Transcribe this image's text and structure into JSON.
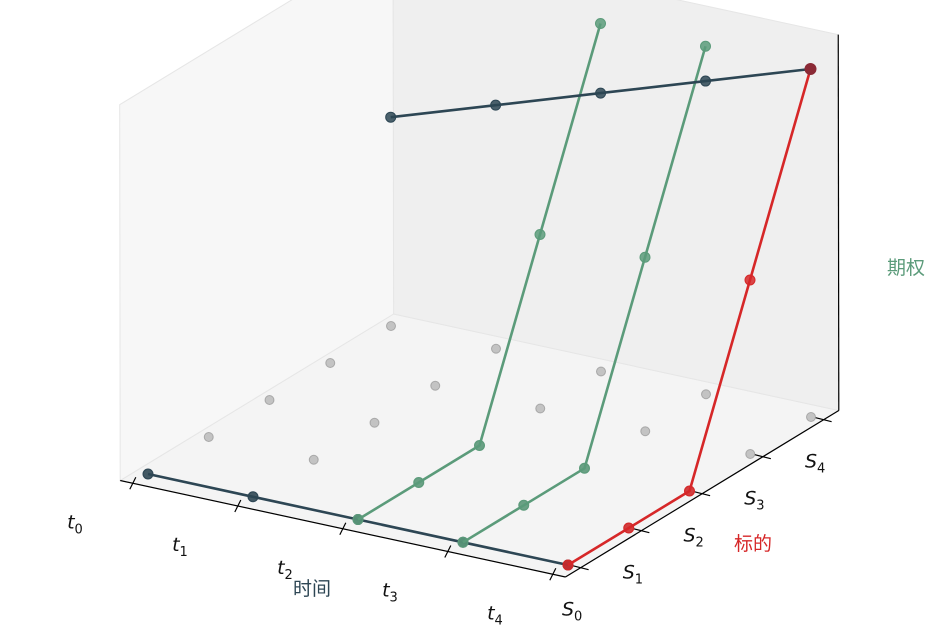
{
  "chart_data": {
    "type": "line3d",
    "title": "",
    "axes": {
      "time": {
        "title": "时间",
        "title_color": "#2d4654",
        "ticks": [
          {
            "base": "t",
            "sub": "0"
          },
          {
            "base": "t",
            "sub": "1"
          },
          {
            "base": "t",
            "sub": "2"
          },
          {
            "base": "t",
            "sub": "3"
          },
          {
            "base": "t",
            "sub": "4"
          }
        ]
      },
      "underlying": {
        "title": "标的",
        "title_color": "#d62728",
        "ticks": [
          {
            "base": "S",
            "sub": "0"
          },
          {
            "base": "S",
            "sub": "1"
          },
          {
            "base": "S",
            "sub": "2"
          },
          {
            "base": "S",
            "sub": "3"
          },
          {
            "base": "S",
            "sub": "4"
          }
        ]
      },
      "option": {
        "title": "期权",
        "title_color": "#5b9b7a",
        "range": [
          0,
          1
        ]
      }
    },
    "grid_points": {
      "color": "#888888",
      "t": [
        0,
        1,
        2,
        3,
        4
      ],
      "s": [
        0,
        1,
        2,
        3,
        4
      ],
      "z": 0
    },
    "series": [
      {
        "role": "time-baseline",
        "color": "#2d4654",
        "points": [
          [
            0,
            0,
            0
          ],
          [
            1,
            0,
            0
          ],
          [
            2,
            0,
            0
          ],
          [
            3,
            0,
            0
          ],
          [
            4,
            0,
            0
          ]
        ]
      },
      {
        "role": "underlying-path",
        "color": "#d62728",
        "points": [
          [
            4,
            0,
            0
          ],
          [
            4,
            1,
            0
          ],
          [
            4,
            2,
            0
          ],
          [
            4,
            3,
            0.5
          ],
          [
            4,
            4,
            1
          ]
        ]
      },
      {
        "role": "option-path",
        "color": "#5b9b7a",
        "points": [
          [
            2,
            0,
            0
          ],
          [
            2,
            1,
            0
          ],
          [
            2,
            2,
            0
          ],
          [
            2,
            3,
            0.5
          ],
          [
            2,
            4,
            1
          ]
        ]
      },
      {
        "role": "option-path",
        "color": "#5b9b7a",
        "points": [
          [
            3,
            0,
            0
          ],
          [
            3,
            1,
            0
          ],
          [
            3,
            2,
            0
          ],
          [
            3,
            3,
            0.5
          ],
          [
            3,
            4,
            1
          ]
        ]
      },
      {
        "role": "option-boundary",
        "color": "#2d4654",
        "points": [
          [
            0,
            4,
            0.6
          ],
          [
            1,
            4,
            0.7
          ],
          [
            2,
            4,
            0.8
          ],
          [
            3,
            4,
            0.9
          ],
          [
            4,
            4,
            1
          ]
        ]
      }
    ],
    "endpoint_highlight": {
      "color": "#8b2a36",
      "point": [
        4,
        4,
        1
      ]
    },
    "grid": true,
    "legend": "none"
  }
}
